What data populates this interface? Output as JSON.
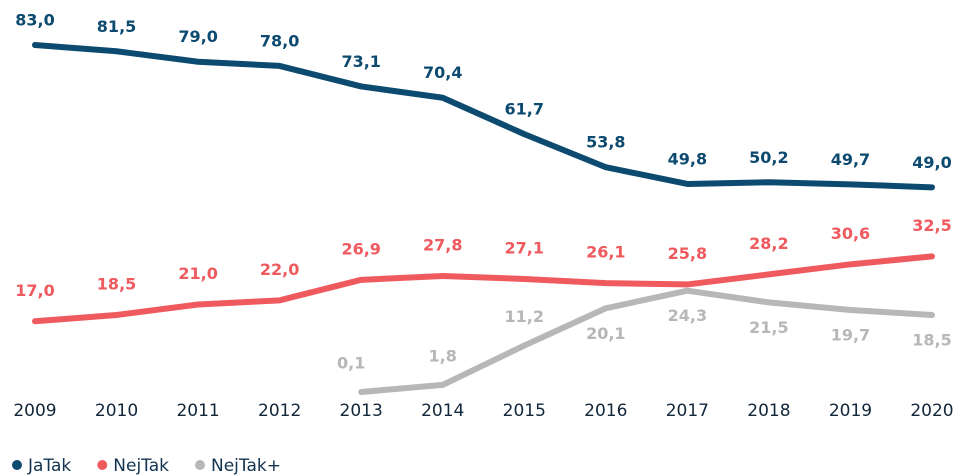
{
  "chart_data": {
    "type": "line",
    "x": [
      "2009",
      "2010",
      "2011",
      "2012",
      "2013",
      "2014",
      "2015",
      "2016",
      "2017",
      "2018",
      "2019",
      "2020"
    ],
    "series": [
      {
        "name": "JaTak",
        "color": "#0d4a70",
        "values": [
          83.0,
          81.5,
          79.0,
          78.0,
          73.1,
          70.4,
          61.7,
          53.8,
          49.8,
          50.2,
          49.7,
          49.0
        ],
        "value_labels": [
          "83,0",
          "81,5",
          "79,0",
          "78,0",
          "73,1",
          "70,4",
          "61,7",
          "53,8",
          "49,8",
          "50,2",
          "49,7",
          "49,0"
        ]
      },
      {
        "name": "NejTak",
        "color": "#ef5a5f",
        "values": [
          17.0,
          18.5,
          21.0,
          22.0,
          26.9,
          27.8,
          27.1,
          26.1,
          25.8,
          28.2,
          30.6,
          32.5
        ],
        "value_labels": [
          "17,0",
          "18,5",
          "21,0",
          "22,0",
          "26,9",
          "27,8",
          "27,1",
          "26,1",
          "25,8",
          "28,2",
          "30,6",
          "32,5"
        ]
      },
      {
        "name": "NejTak+",
        "color": "#b7b7b7",
        "values": [
          null,
          null,
          null,
          null,
          0.1,
          1.8,
          11.2,
          20.1,
          24.3,
          21.5,
          19.7,
          18.5
        ],
        "value_labels": [
          null,
          null,
          null,
          null,
          "0,1",
          "1,8",
          "11,2",
          "20,1",
          "24,3",
          "21,5",
          "19,7",
          "18,5"
        ]
      }
    ]
  }
}
